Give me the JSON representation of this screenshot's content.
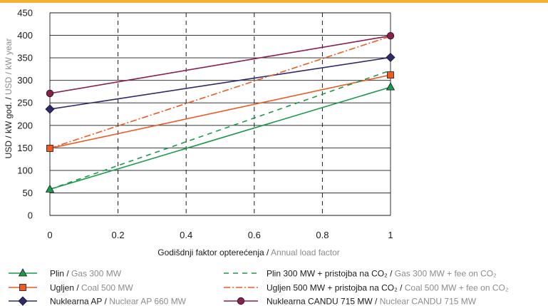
{
  "chart_data": {
    "type": "line",
    "xlabel_hr": "Godišdnji faktor opterećenja",
    "xlabel_sep": " / ",
    "xlabel_en": "Annual load factor",
    "ylabel_hr": "USD / kW god.",
    "ylabel_sep": " / ",
    "ylabel_en": "USD / kW year",
    "xlim": [
      0,
      1
    ],
    "ylim": [
      0,
      450
    ],
    "x_ticks": [
      {
        "v": 0,
        "label": "0"
      },
      {
        "v": 0.2,
        "label": "0.2"
      },
      {
        "v": 0.4,
        "label": "0.4"
      },
      {
        "v": 0.6,
        "label": "0.6"
      },
      {
        "v": 0.8,
        "label": "0.8"
      },
      {
        "v": 1,
        "label": "1"
      }
    ],
    "y_ticks": [
      {
        "v": 0,
        "label": "0"
      },
      {
        "v": 50,
        "label": "50"
      },
      {
        "v": 100,
        "label": "100"
      },
      {
        "v": 150,
        "label": "150"
      },
      {
        "v": 200,
        "label": "200"
      },
      {
        "v": 250,
        "label": "250"
      },
      {
        "v": 300,
        "label": "300"
      },
      {
        "v": 350,
        "label": "350"
      },
      {
        "v": 400,
        "label": "400"
      },
      {
        "v": 450,
        "label": "450"
      }
    ],
    "grid": "horizontal solid, vertical dashed",
    "legend_position": "bottom",
    "series": [
      {
        "key": "gas",
        "name_hr": "Plin",
        "name_sep": " / ",
        "name_en": "Gas 300 MW",
        "color": "#1a9a4a",
        "dash": "solid",
        "marker": "triangle",
        "x": [
          0,
          1
        ],
        "y": [
          58,
          285
        ]
      },
      {
        "key": "coal",
        "name_hr": "Ugljen",
        "name_sep": " / ",
        "name_en": "Coal 500 MW",
        "color": "#ee5a24",
        "dash": "solid",
        "marker": "square",
        "x": [
          0,
          1
        ],
        "y": [
          149,
          312
        ]
      },
      {
        "key": "ap",
        "name_hr": "Nuklearna AP",
        "name_sep": " / ",
        "name_en": "Nuclear AP 660 MW",
        "color": "#2d2a6e",
        "dash": "solid",
        "marker": "diamond",
        "x": [
          0,
          1
        ],
        "y": [
          236,
          351
        ]
      },
      {
        "key": "gas_fee",
        "name_hr": "Plin 300 MW + pristojba na CO₂",
        "name_sep": " / ",
        "name_en": "Gas 300 MW + fee on CO₂",
        "color": "#1a9a4a",
        "dash": "dashed",
        "marker": "none",
        "x": [
          0,
          1
        ],
        "y": [
          58,
          322
        ]
      },
      {
        "key": "coal_fee",
        "name_hr": "Ugljen 500 MW + pristojba na CO₂",
        "name_sep": " / ",
        "name_en": "Coal 500 MW + fee on CO₂",
        "color": "#ee5a24",
        "dash": "dashdot",
        "marker": "none",
        "x": [
          0,
          1
        ],
        "y": [
          149,
          398
        ]
      },
      {
        "key": "candu",
        "name_hr": "Nuklearna CANDU 715 MW",
        "name_sep": " / ",
        "name_en": "Nuclear CANDU 715 MW",
        "color": "#8a1e4e",
        "dash": "solid",
        "marker": "circle",
        "x": [
          0,
          1
        ],
        "y": [
          271,
          399
        ]
      }
    ]
  }
}
